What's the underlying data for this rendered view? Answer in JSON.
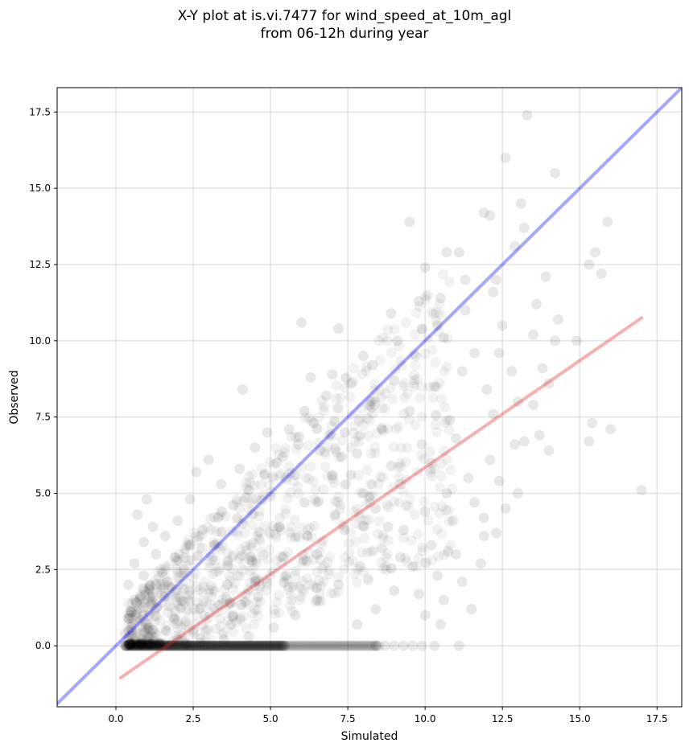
{
  "chart_data": {
    "type": "scatter",
    "title": "X-Y plot at is.vi.7477 for wind_speed_at_10m_agl",
    "subtitle": "from 06-12h during year",
    "xlabel": "Simulated",
    "ylabel": "Observed",
    "xlim": [
      -1.9,
      18.3
    ],
    "ylim": [
      -2.0,
      18.3
    ],
    "xticks": [
      0.0,
      2.5,
      5.0,
      7.5,
      10.0,
      12.5,
      15.0,
      17.5
    ],
    "yticks": [
      0.0,
      2.5,
      5.0,
      7.5,
      10.0,
      12.5,
      15.0,
      17.5
    ],
    "xtick_labels": [
      "0.0",
      "2.5",
      "5.0",
      "7.5",
      "10.0",
      "12.5",
      "15.0",
      "17.5"
    ],
    "ytick_labels": [
      "0.0",
      "2.5",
      "5.0",
      "7.5",
      "10.0",
      "12.5",
      "15.0",
      "17.5"
    ],
    "grid": true,
    "point_color": "#000000",
    "point_alpha": 0.07,
    "lines": [
      {
        "role": "one-to-one",
        "color": "#0000ff",
        "x": [
          -1.9,
          18.3
        ],
        "y": [
          -1.9,
          18.3
        ]
      },
      {
        "role": "regression",
        "color": "#e81c1c",
        "x": [
          0.15,
          17.0
        ],
        "y": [
          -1.05,
          10.75
        ]
      }
    ],
    "points": [
      [
        13.3,
        17.4
      ],
      [
        12.6,
        16.0
      ],
      [
        14.2,
        15.5
      ],
      [
        11.9,
        14.2
      ],
      [
        12.1,
        14.1
      ],
      [
        13.1,
        14.5
      ],
      [
        9.5,
        13.9
      ],
      [
        15.9,
        13.9
      ],
      [
        13.2,
        13.7
      ],
      [
        12.9,
        13.1
      ],
      [
        15.5,
        12.9
      ],
      [
        15.3,
        12.5
      ],
      [
        15.7,
        12.2
      ],
      [
        10.7,
        12.9
      ],
      [
        11.1,
        12.9
      ],
      [
        12.3,
        12.0
      ],
      [
        13.9,
        12.1
      ],
      [
        10.0,
        12.4
      ],
      [
        4.1,
        8.4
      ],
      [
        6.0,
        10.6
      ],
      [
        7.2,
        10.4
      ],
      [
        6.3,
        8.8
      ],
      [
        15.4,
        7.3
      ],
      [
        15.3,
        6.7
      ],
      [
        16.0,
        7.1
      ],
      [
        17.0,
        5.1
      ],
      [
        13.0,
        5.0
      ],
      [
        12.6,
        4.5
      ],
      [
        11.9,
        3.6
      ],
      [
        11.5,
        1.2
      ],
      [
        11.1,
        0.0
      ],
      [
        10.5,
        0.7
      ],
      [
        10.3,
        0.0
      ],
      [
        9.9,
        0.0
      ],
      [
        9.6,
        0.0
      ],
      [
        9.3,
        0.0
      ],
      [
        9.0,
        0.0
      ],
      [
        8.7,
        0.0
      ],
      [
        8.4,
        0.0
      ],
      [
        1.0,
        4.8
      ],
      [
        0.7,
        4.3
      ],
      [
        0.4,
        0.9
      ],
      [
        0.3,
        0.4
      ],
      [
        0.9,
        2.3
      ],
      [
        3.0,
        6.1
      ],
      [
        2.6,
        5.7
      ],
      [
        4.9,
        7.0
      ],
      [
        5.2,
        6.0
      ],
      [
        7.0,
        8.9
      ],
      [
        8.0,
        9.5
      ],
      [
        8.9,
        10.9
      ],
      [
        9.8,
        11.3
      ],
      [
        10.4,
        10.5
      ],
      [
        11.6,
        9.6
      ],
      [
        12.4,
        9.6
      ],
      [
        13.5,
        10.2
      ],
      [
        14.2,
        10.0
      ],
      [
        14.0,
        8.6
      ],
      [
        13.0,
        8.0
      ],
      [
        12.2,
        7.6
      ],
      [
        11.0,
        6.8
      ],
      [
        10.2,
        6.0
      ],
      [
        9.2,
        5.3
      ],
      [
        8.4,
        4.5
      ],
      [
        7.4,
        3.8
      ],
      [
        6.5,
        3.0
      ],
      [
        5.5,
        2.3
      ],
      [
        4.6,
        1.6
      ],
      [
        3.8,
        1.0
      ],
      [
        2.9,
        0.5
      ],
      [
        2.0,
        0.2
      ],
      [
        1.4,
        0.1
      ],
      [
        3.2,
        3.3
      ],
      [
        4.1,
        4.0
      ],
      [
        5.0,
        4.9
      ],
      [
        5.8,
        5.6
      ],
      [
        6.6,
        6.4
      ],
      [
        7.4,
        7.0
      ],
      [
        8.2,
        7.9
      ],
      [
        9.0,
        8.7
      ],
      [
        9.7,
        9.5
      ],
      [
        10.6,
        10.1
      ],
      [
        11.3,
        11.0
      ],
      [
        12.2,
        11.6
      ],
      [
        2.2,
        2.5
      ],
      [
        1.8,
        1.9
      ],
      [
        3.6,
        2.0
      ],
      [
        4.4,
        2.8
      ],
      [
        5.3,
        3.9
      ],
      [
        6.1,
        4.7
      ],
      [
        7.0,
        5.6
      ],
      [
        7.8,
        6.3
      ],
      [
        8.6,
        7.1
      ],
      [
        9.5,
        7.7
      ],
      [
        10.3,
        8.5
      ],
      [
        11.2,
        9.0
      ],
      [
        12.0,
        8.4
      ],
      [
        12.8,
        9.0
      ],
      [
        13.5,
        7.9
      ],
      [
        10.8,
        7.4
      ],
      [
        9.9,
        6.6
      ],
      [
        8.9,
        5.9
      ],
      [
        8.0,
        5.0
      ],
      [
        7.1,
        4.3
      ],
      [
        6.2,
        3.6
      ],
      [
        5.4,
        2.9
      ],
      [
        4.5,
        2.1
      ],
      [
        3.7,
        1.4
      ],
      [
        2.7,
        1.2
      ],
      [
        1.9,
        0.9
      ],
      [
        1.2,
        0.5
      ],
      [
        0.8,
        0.1
      ],
      [
        0.6,
        1.5
      ],
      [
        1.3,
        3.0
      ],
      [
        1.6,
        3.6
      ],
      [
        2.0,
        4.1
      ],
      [
        2.4,
        4.8
      ],
      [
        3.4,
        5.3
      ],
      [
        4.0,
        5.8
      ],
      [
        4.5,
        6.5
      ],
      [
        5.6,
        7.1
      ],
      [
        6.1,
        7.7
      ],
      [
        6.8,
        8.2
      ],
      [
        7.6,
        8.6
      ],
      [
        8.3,
        9.2
      ],
      [
        9.1,
        10.0
      ],
      [
        9.9,
        10.4
      ],
      [
        10.5,
        11.4
      ],
      [
        11.3,
        12.0
      ],
      [
        12.5,
        10.5
      ],
      [
        13.6,
        11.2
      ],
      [
        14.3,
        10.7
      ],
      [
        14.9,
        10.0
      ],
      [
        13.8,
        9.1
      ],
      [
        12.9,
        6.6
      ],
      [
        12.1,
        6.1
      ],
      [
        11.4,
        5.5
      ],
      [
        10.7,
        5.0
      ],
      [
        10.0,
        4.4
      ],
      [
        9.3,
        3.8
      ],
      [
        8.6,
        3.2
      ],
      [
        7.9,
        2.6
      ],
      [
        7.2,
        2.0
      ],
      [
        6.5,
        1.5
      ],
      [
        5.8,
        1.0
      ],
      [
        5.1,
        0.6
      ],
      [
        4.3,
        0.3
      ],
      [
        3.5,
        0.2
      ],
      [
        10.9,
        4.1
      ],
      [
        10.2,
        3.3
      ],
      [
        9.6,
        2.6
      ],
      [
        9.0,
        1.8
      ],
      [
        8.4,
        1.2
      ],
      [
        7.8,
        0.7
      ],
      [
        11.8,
        2.7
      ],
      [
        11.2,
        2.1
      ],
      [
        10.6,
        1.5
      ],
      [
        10.0,
        1.0
      ],
      [
        12.3,
        3.7
      ],
      [
        11.6,
        4.7
      ],
      [
        12.4,
        5.4
      ],
      [
        13.2,
        6.7
      ],
      [
        14.0,
        6.4
      ],
      [
        13.7,
        6.9
      ],
      [
        11.9,
        4.2
      ],
      [
        11.0,
        3.0
      ],
      [
        10.4,
        2.3
      ],
      [
        9.8,
        1.7
      ],
      [
        9.2,
        2.9
      ],
      [
        8.8,
        3.9
      ],
      [
        8.2,
        4.9
      ],
      [
        7.6,
        5.6
      ],
      [
        7.3,
        6.2
      ],
      [
        6.9,
        6.9
      ],
      [
        6.4,
        7.3
      ],
      [
        5.9,
        6.6
      ],
      [
        5.4,
        6.2
      ],
      [
        4.8,
        5.6
      ],
      [
        4.3,
        5.1
      ],
      [
        3.8,
        4.6
      ],
      [
        3.3,
        4.2
      ],
      [
        2.8,
        3.8
      ],
      [
        2.4,
        3.3
      ],
      [
        1.9,
        2.9
      ],
      [
        1.5,
        2.4
      ],
      [
        1.1,
        2.0
      ],
      [
        0.8,
        1.6
      ],
      [
        0.5,
        1.1
      ],
      [
        0.4,
        2.0
      ],
      [
        0.6,
        2.7
      ],
      [
        0.9,
        3.4
      ],
      [
        1.2,
        3.9
      ]
    ]
  }
}
